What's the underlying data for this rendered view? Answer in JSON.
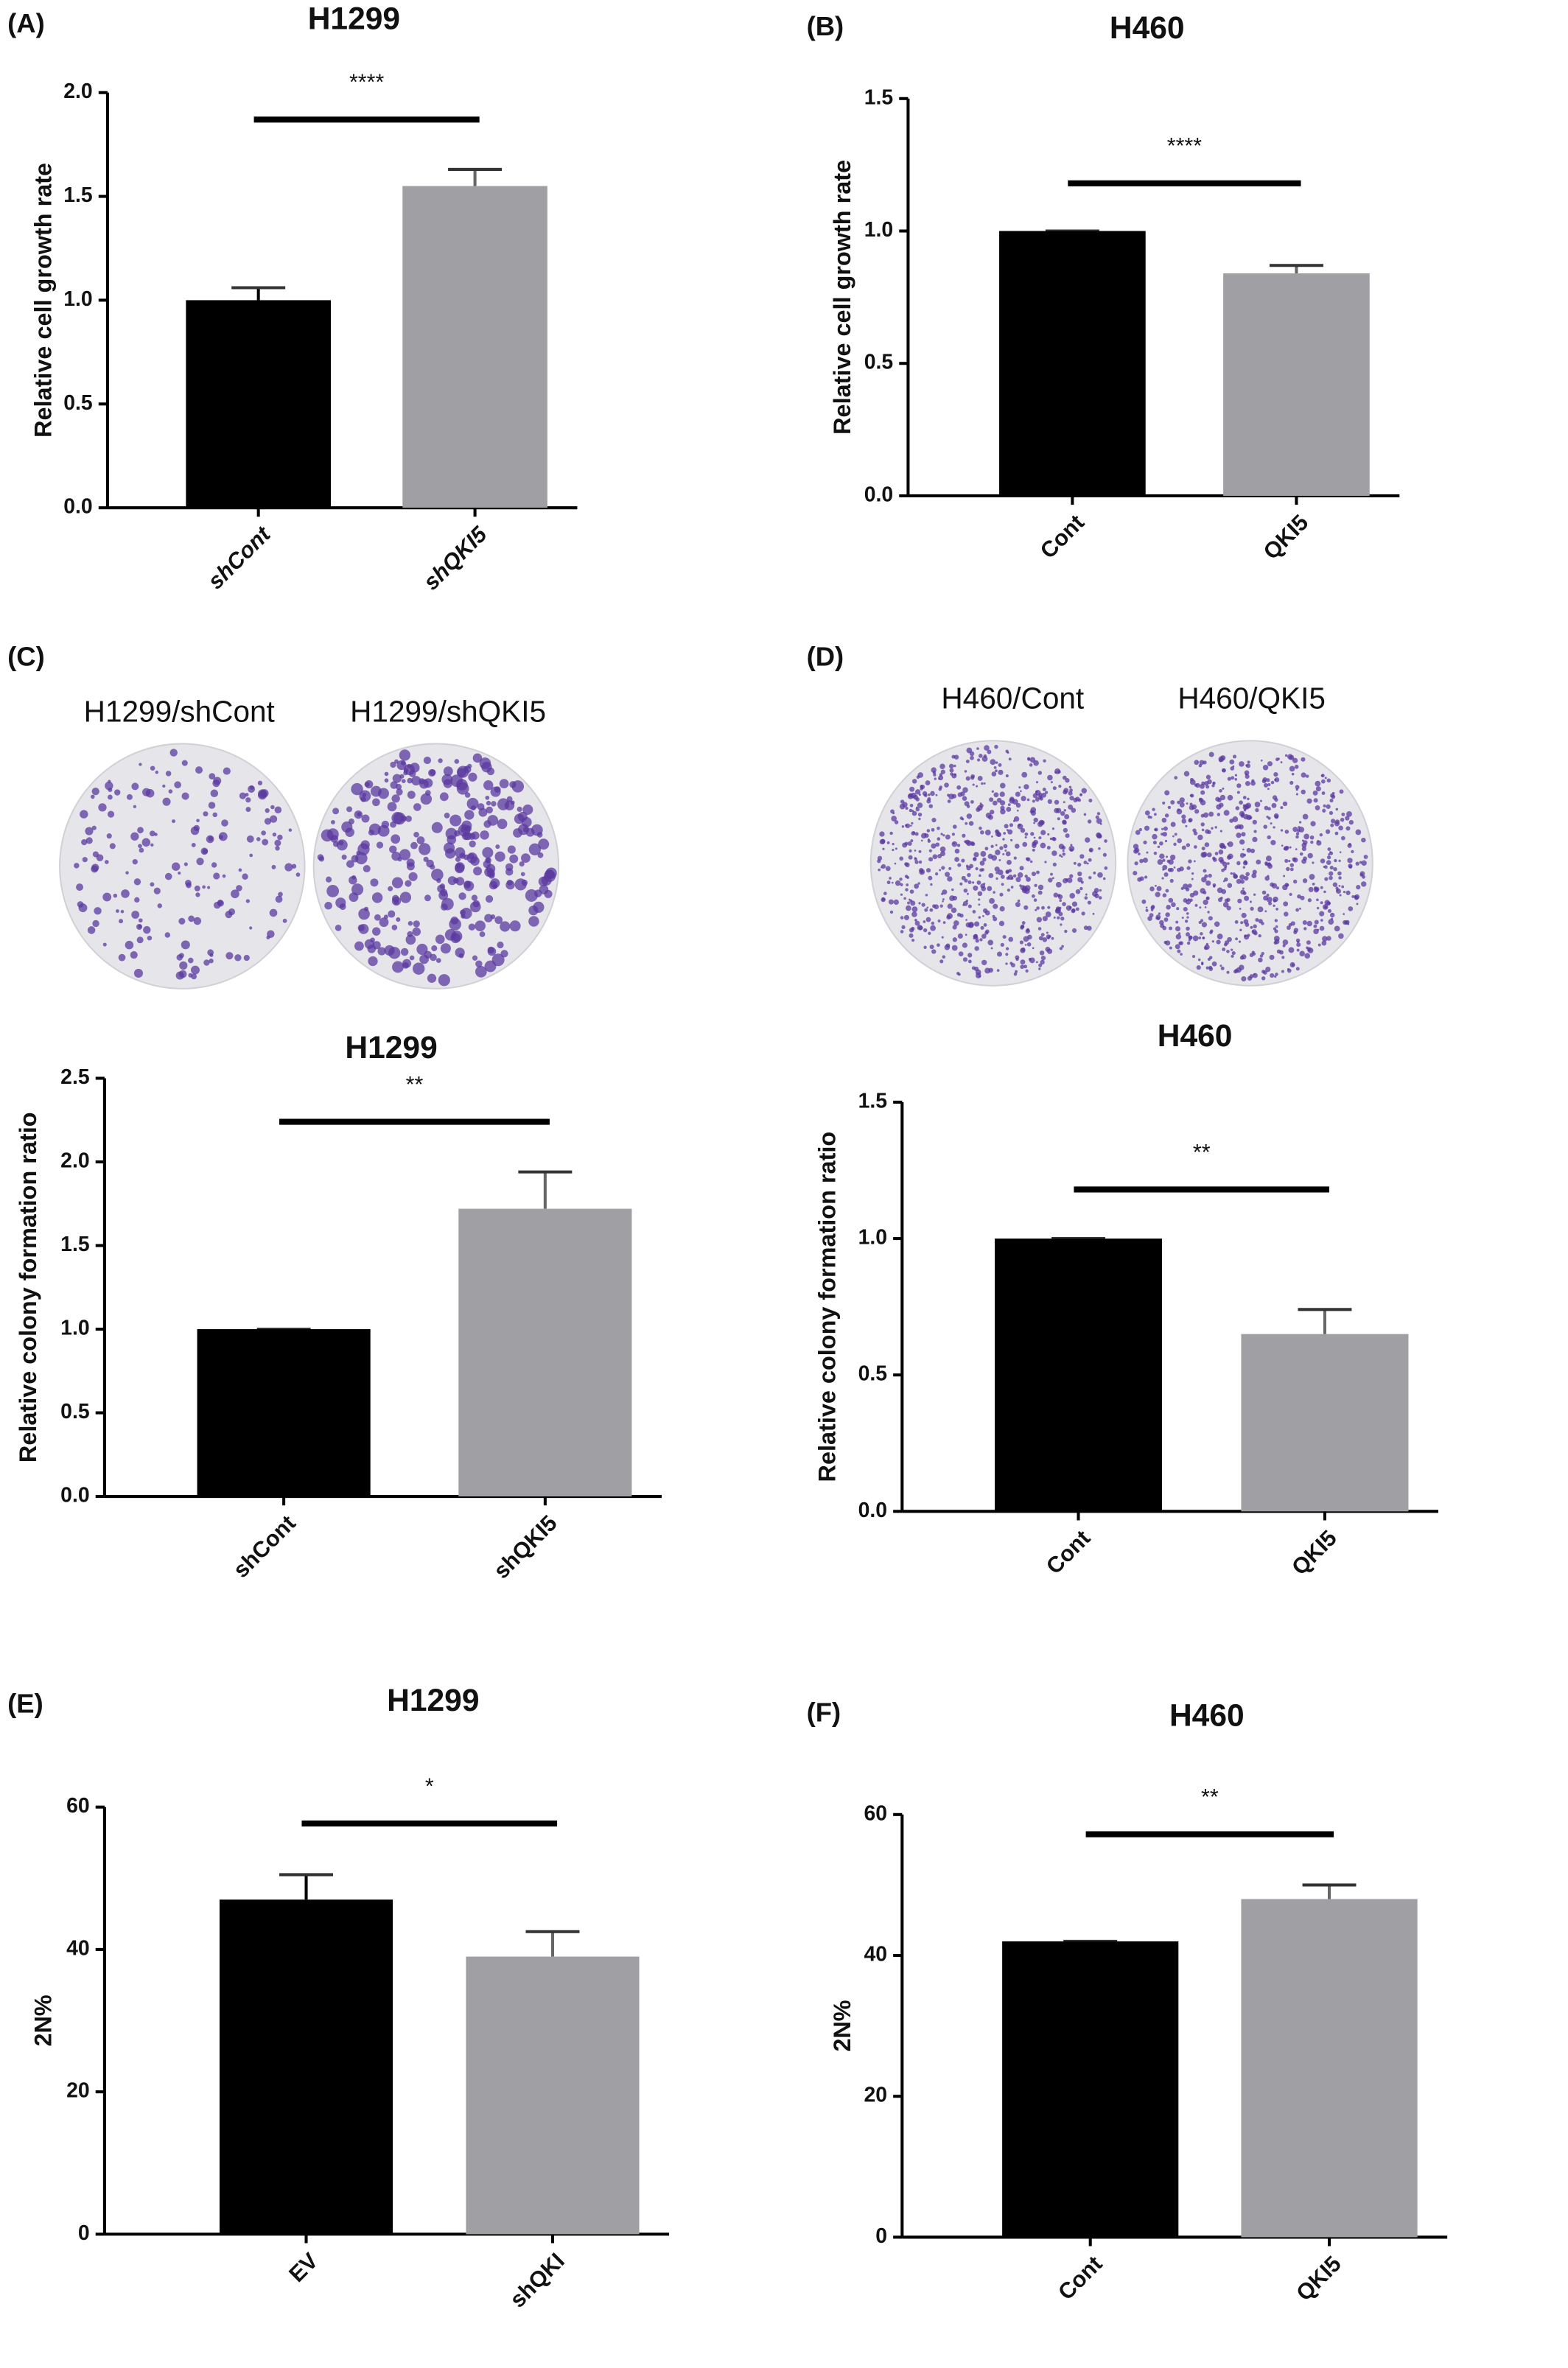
{
  "chart_data": [
    {
      "type": "bar",
      "panel": "(A)",
      "title": "H1299",
      "ylabel": "Relative cell growth rate",
      "italic_categories": true,
      "categories": [
        "shCont",
        "shQKI5"
      ],
      "values": [
        1.0,
        1.55
      ],
      "errors": [
        0.06,
        0.08
      ],
      "colors": [
        "#000000",
        "#a0a0a4"
      ],
      "ylim": [
        0,
        2.0
      ],
      "yticks": [
        {
          "value": 0,
          "label": "0.0"
        },
        {
          "value": 0.5,
          "label": "0.5"
        },
        {
          "value": 1,
          "label": "1.0"
        },
        {
          "value": 1.5,
          "label": "1.5"
        },
        {
          "value": 2,
          "label": "2.0"
        }
      ],
      "significance": "****"
    },
    {
      "type": "bar",
      "panel": "(B)",
      "title": "H460",
      "ylabel": "Relative cell growth rate",
      "italic_categories": false,
      "categories": [
        "Cont",
        "QKI5"
      ],
      "values": [
        1.0,
        0.84
      ],
      "errors": [
        0,
        0.03
      ],
      "colors": [
        "#000000",
        "#a0a0a4"
      ],
      "ylim": [
        0,
        1.5
      ],
      "yticks": [
        {
          "value": 0,
          "label": "0.0"
        },
        {
          "value": 0.5,
          "label": "0.5"
        },
        {
          "value": 1,
          "label": "1.0"
        },
        {
          "value": 1.5,
          "label": "1.5"
        }
      ],
      "significance": "****"
    },
    {
      "type": "bar",
      "panel": "(C)",
      "title": "H1299",
      "ylabel": "Relative colony formation ratio",
      "italic_categories": false,
      "images": [
        "H1299/shCont",
        "H1299/shQKI5"
      ],
      "categories": [
        "shCont",
        "shQKI5"
      ],
      "values": [
        1.0,
        1.72
      ],
      "errors": [
        0,
        0.22
      ],
      "colors": [
        "#000000",
        "#a0a0a4"
      ],
      "ylim": [
        0,
        2.5
      ],
      "yticks": [
        {
          "value": 0,
          "label": "0.0"
        },
        {
          "value": 0.5,
          "label": "0.5"
        },
        {
          "value": 1,
          "label": "1.0"
        },
        {
          "value": 1.5,
          "label": "1.5"
        },
        {
          "value": 2,
          "label": "2.0"
        },
        {
          "value": 2.5,
          "label": "2.5"
        }
      ],
      "significance": "**"
    },
    {
      "type": "bar",
      "panel": "(D)",
      "title": "H460",
      "ylabel": "Relative colony formation ratio",
      "italic_categories": false,
      "images": [
        "H460/Cont",
        "H460/QKI5"
      ],
      "categories": [
        "Cont",
        "QKI5"
      ],
      "values": [
        1.0,
        0.65
      ],
      "errors": [
        0,
        0.09
      ],
      "colors": [
        "#000000",
        "#a0a0a4"
      ],
      "ylim": [
        0,
        1.5
      ],
      "yticks": [
        {
          "value": 0,
          "label": "0.0"
        },
        {
          "value": 0.5,
          "label": "0.5"
        },
        {
          "value": 1,
          "label": "1.0"
        },
        {
          "value": 1.5,
          "label": "1.5"
        }
      ],
      "significance": "**"
    },
    {
      "type": "bar",
      "panel": "(E)",
      "title": "H1299",
      "ylabel": "2N%",
      "italic_categories": false,
      "categories": [
        "EV",
        "shQKI"
      ],
      "values": [
        47,
        39
      ],
      "errors": [
        3.5,
        3.5
      ],
      "colors": [
        "#000000",
        "#a0a0a4"
      ],
      "ylim": [
        0,
        60
      ],
      "yticks": [
        0,
        20,
        40,
        60
      ],
      "significance": "*"
    },
    {
      "type": "bar",
      "panel": "(F)",
      "title": "H460",
      "ylabel": "2N%",
      "italic_categories": false,
      "categories": [
        "Cont",
        "QKI5"
      ],
      "values": [
        42,
        48
      ],
      "errors": [
        0,
        2
      ],
      "colors": [
        "#000000",
        "#a0a0a4"
      ],
      "ylim": [
        0,
        60
      ],
      "yticks": [
        0,
        20,
        40,
        60
      ],
      "significance": "**"
    }
  ]
}
